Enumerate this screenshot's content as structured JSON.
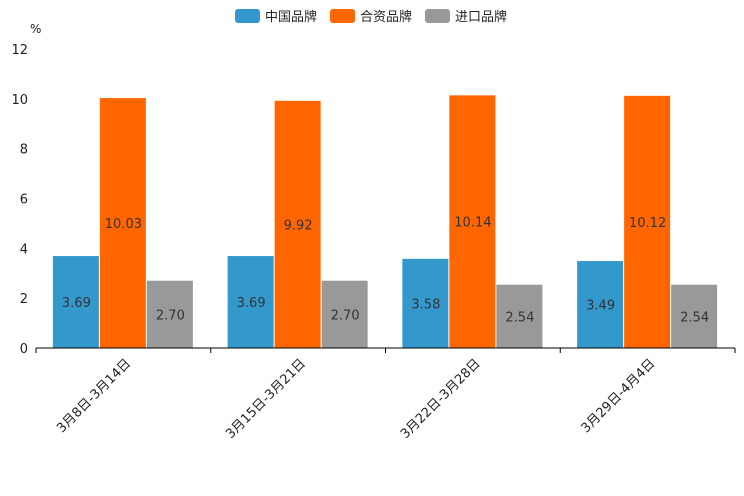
{
  "chart_data": {
    "type": "bar",
    "title": "",
    "xlabel": "",
    "ylabel": "%",
    "ylim": [
      0,
      12
    ],
    "yticks": [
      "0",
      "2",
      "4",
      "6",
      "8",
      "10",
      "12"
    ],
    "grid": false,
    "legend_position": "top-center",
    "categories": [
      "3月8日-3月14日",
      "3月15日-3月21日",
      "3月22日-3月28日",
      "3月29日-4月4日"
    ],
    "series": [
      {
        "name": "中国品牌",
        "color": "#3399cc",
        "values": [
          3.69,
          3.69,
          3.58,
          3.49
        ],
        "labels": [
          "3.69",
          "3.69",
          "3.58",
          "3.49"
        ]
      },
      {
        "name": "合资品牌",
        "color": "#ff6600",
        "values": [
          10.03,
          9.92,
          10.14,
          10.12
        ],
        "labels": [
          "10.03",
          "9.92",
          "10.14",
          "10.12"
        ]
      },
      {
        "name": "进口品牌",
        "color": "#999999",
        "values": [
          2.7,
          2.7,
          2.54,
          2.54
        ],
        "labels": [
          "2.70",
          "2.70",
          "2.54",
          "2.54"
        ]
      }
    ]
  }
}
